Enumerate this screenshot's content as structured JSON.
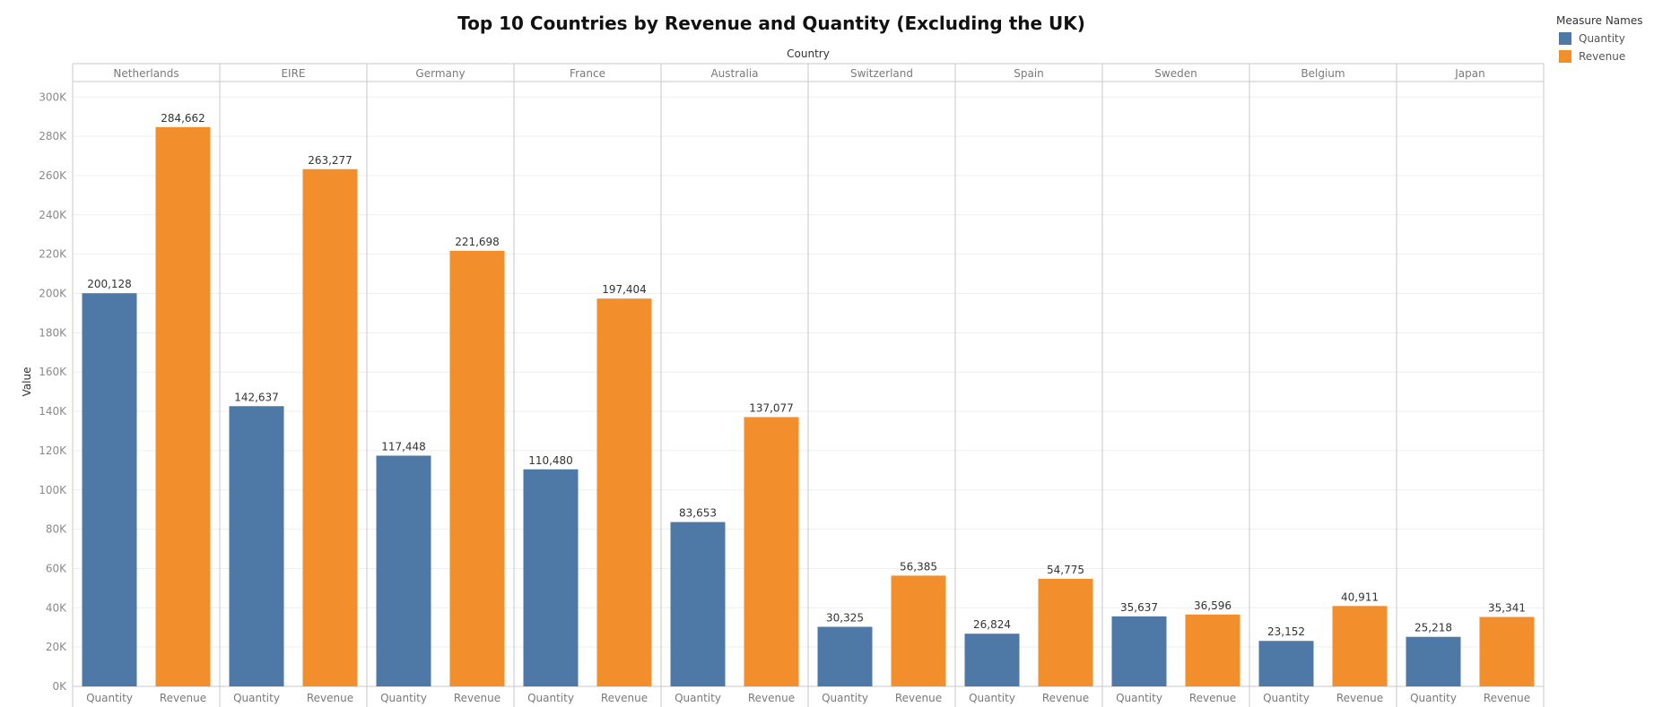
{
  "chart_data": {
    "type": "bar",
    "title": "Top 10 Countries by Revenue and Quantity (Excluding the UK)",
    "column_header": "Country",
    "ylabel": "Value",
    "ylim": [
      0,
      310000
    ],
    "yticks": [
      0,
      20000,
      40000,
      60000,
      80000,
      100000,
      120000,
      140000,
      160000,
      180000,
      200000,
      220000,
      240000,
      260000,
      280000,
      300000
    ],
    "ytick_labels": [
      "0K",
      "20K",
      "40K",
      "60K",
      "80K",
      "100K",
      "120K",
      "140K",
      "160K",
      "180K",
      "200K",
      "220K",
      "240K",
      "260K",
      "280K",
      "300K"
    ],
    "grid": true,
    "legend": {
      "title": "Measure Names",
      "position": "top-right",
      "items": [
        {
          "name": "Quantity",
          "color": "#4e79a7"
        },
        {
          "name": "Revenue",
          "color": "#f28e2b"
        }
      ]
    },
    "categories": [
      "Netherlands",
      "EIRE",
      "Germany",
      "France",
      "Australia",
      "Switzerland",
      "Spain",
      "Sweden",
      "Belgium",
      "Japan"
    ],
    "sub_categories": [
      "Quantity",
      "Revenue"
    ],
    "series": [
      {
        "name": "Quantity",
        "color": "#4e79a7",
        "values": [
          200128,
          142637,
          117448,
          110480,
          83653,
          30325,
          26824,
          35637,
          23152,
          25218
        ],
        "labels": [
          "200,128",
          "142,637",
          "117,448",
          "110,480",
          "83,653",
          "30,325",
          "26,824",
          "35,637",
          "23,152",
          "25,218"
        ]
      },
      {
        "name": "Revenue",
        "color": "#f28e2b",
        "values": [
          284662,
          263277,
          221698,
          197404,
          137077,
          56385,
          54775,
          36596,
          40911,
          35341
        ],
        "labels": [
          "284,662",
          "263,277",
          "221,698",
          "197,404",
          "137,077",
          "56,385",
          "54,775",
          "36,596",
          "40,911",
          "35,341"
        ]
      }
    ]
  }
}
